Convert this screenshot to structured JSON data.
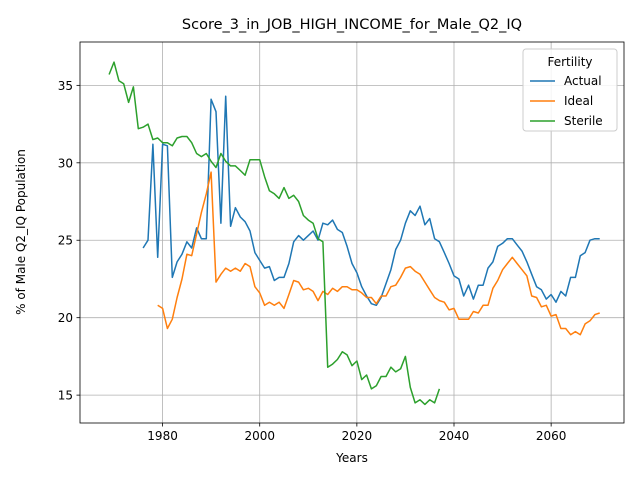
{
  "chart_data": {
    "type": "line",
    "title": "Score_3_in_JOB_HIGH_INCOME_for_Male_Q2_IQ",
    "xlabel": "Years",
    "ylabel": "% of Male Q2_IQ Population",
    "xlim": [
      1963,
      2075
    ],
    "ylim": [
      13.2,
      37.8
    ],
    "xticks": [
      1980,
      2000,
      2020,
      2040,
      2060
    ],
    "yticks": [
      15,
      20,
      25,
      30,
      35
    ],
    "grid": true,
    "legend": {
      "title": "Fertility",
      "position": "top-right"
    },
    "series": [
      {
        "name": "Actual",
        "color": "#1f77b4",
        "x": [
          1976,
          1977,
          1978,
          1979,
          1980,
          1981,
          1982,
          1983,
          1984,
          1985,
          1986,
          1987,
          1988,
          1989,
          1990,
          1991,
          1992,
          1993,
          1994,
          1995,
          1996,
          1997,
          1998,
          1999,
          2000,
          2001,
          2002,
          2003,
          2004,
          2005,
          2006,
          2007,
          2008,
          2009,
          2010,
          2011,
          2012,
          2013,
          2014,
          2015,
          2016,
          2017,
          2018,
          2019,
          2020,
          2021,
          2022,
          2023,
          2024,
          2025,
          2026,
          2027,
          2028,
          2029,
          2030,
          2031,
          2032,
          2033,
          2034,
          2035,
          2036,
          2037,
          2038,
          2039,
          2040,
          2041,
          2042,
          2043,
          2044,
          2045,
          2046,
          2047,
          2048,
          2049,
          2050,
          2051,
          2052,
          2053,
          2054,
          2055,
          2056,
          2057,
          2058,
          2059,
          2060,
          2061,
          2062,
          2063,
          2064,
          2065,
          2066,
          2067,
          2068,
          2069,
          2070
        ],
        "values": [
          24.5,
          25.0,
          31.2,
          23.9,
          31.2,
          31.1,
          22.6,
          23.6,
          24.1,
          24.9,
          24.5,
          25.8,
          25.1,
          25.1,
          34.1,
          33.3,
          26.1,
          34.3,
          25.9,
          27.1,
          26.5,
          26.2,
          25.6,
          24.2,
          23.7,
          23.2,
          23.3,
          22.4,
          22.6,
          22.6,
          23.5,
          24.9,
          25.3,
          25.0,
          25.3,
          25.6,
          25.0,
          26.1,
          26.0,
          26.3,
          25.7,
          25.5,
          24.6,
          23.5,
          22.9,
          22.0,
          21.4,
          20.9,
          20.8,
          21.3,
          22.2,
          23.1,
          24.4,
          25.0,
          26.1,
          26.9,
          26.6,
          27.2,
          26.0,
          26.4,
          25.1,
          24.9,
          24.2,
          23.5,
          22.7,
          22.5,
          21.4,
          22.1,
          21.2,
          22.1,
          22.1,
          23.2,
          23.6,
          24.6,
          24.8,
          25.1,
          25.1,
          24.7,
          24.3,
          23.6,
          22.8,
          22.0,
          21.8,
          21.2,
          21.5,
          21.0,
          21.7,
          21.4,
          22.6,
          22.6,
          24.0,
          24.2,
          25.0,
          25.1,
          25.1
        ]
      },
      {
        "name": "Ideal",
        "color": "#ff7f0e",
        "x": [
          1979,
          1980,
          1981,
          1982,
          1983,
          1984,
          1985,
          1986,
          1987,
          1988,
          1989,
          1990,
          1991,
          1992,
          1993,
          1994,
          1995,
          1996,
          1997,
          1998,
          1999,
          2000,
          2001,
          2002,
          2003,
          2004,
          2005,
          2006,
          2007,
          2008,
          2009,
          2010,
          2011,
          2012,
          2013,
          2014,
          2015,
          2016,
          2017,
          2018,
          2019,
          2020,
          2021,
          2022,
          2023,
          2024,
          2025,
          2026,
          2027,
          2028,
          2029,
          2030,
          2031,
          2032,
          2033,
          2034,
          2035,
          2036,
          2037,
          2038,
          2039,
          2040,
          2041,
          2042,
          2043,
          2044,
          2045,
          2046,
          2047,
          2048,
          2049,
          2050,
          2051,
          2052,
          2053,
          2054,
          2055,
          2056,
          2057,
          2058,
          2059,
          2060,
          2061,
          2062,
          2063,
          2064,
          2065,
          2066,
          2067,
          2068,
          2069,
          2070
        ],
        "values": [
          20.8,
          20.6,
          19.3,
          19.9,
          21.3,
          22.5,
          24.1,
          24.0,
          25.4,
          26.8,
          28.0,
          29.4,
          22.3,
          22.8,
          23.2,
          23.0,
          23.2,
          23.0,
          23.5,
          23.3,
          22.0,
          21.6,
          20.8,
          21.0,
          20.8,
          21.0,
          20.6,
          21.5,
          22.4,
          22.3,
          21.8,
          21.9,
          21.7,
          21.1,
          21.7,
          21.5,
          21.9,
          21.7,
          22.0,
          22.0,
          21.8,
          21.8,
          21.6,
          21.3,
          21.3,
          20.9,
          21.4,
          21.4,
          22.0,
          22.1,
          22.6,
          23.2,
          23.3,
          23.0,
          22.8,
          22.3,
          21.8,
          21.3,
          21.1,
          21.0,
          20.5,
          20.6,
          19.9,
          19.9,
          19.9,
          20.4,
          20.3,
          20.8,
          20.8,
          21.9,
          22.4,
          23.1,
          23.5,
          23.9,
          23.5,
          23.1,
          22.7,
          21.4,
          21.3,
          20.7,
          20.8,
          20.1,
          20.2,
          19.3,
          19.3,
          18.9,
          19.1,
          18.9,
          19.6,
          19.8,
          20.2,
          20.3
        ]
      },
      {
        "name": "Sterile",
        "color": "#2ca02c",
        "x": [
          1969,
          1970,
          1971,
          1972,
          1973,
          1974,
          1975,
          1976,
          1977,
          1978,
          1979,
          1980,
          1981,
          1982,
          1983,
          1984,
          1985,
          1986,
          1987,
          1988,
          1989,
          1990,
          1991,
          1992,
          1993,
          1994,
          1995,
          1996,
          1997,
          1998,
          1999,
          2000,
          2001,
          2002,
          2003,
          2004,
          2005,
          2006,
          2007,
          2008,
          2009,
          2010,
          2011,
          2012,
          2013,
          2014,
          2015,
          2016,
          2017,
          2018,
          2019,
          2020,
          2021,
          2022,
          2023,
          2024,
          2025,
          2026,
          2027,
          2028,
          2029,
          2030,
          2031,
          2032,
          2033,
          2034,
          2035,
          2036,
          2037
        ],
        "values": [
          35.7,
          36.5,
          35.3,
          35.1,
          33.9,
          34.9,
          32.2,
          32.3,
          32.5,
          31.5,
          31.6,
          31.3,
          31.3,
          31.1,
          31.6,
          31.7,
          31.7,
          31.3,
          30.6,
          30.4,
          30.6,
          30.1,
          29.7,
          30.6,
          30.1,
          29.8,
          29.8,
          29.5,
          29.2,
          30.2,
          30.2,
          30.2,
          29.1,
          28.2,
          28.0,
          27.7,
          28.4,
          27.7,
          27.9,
          27.5,
          26.6,
          26.3,
          26.1,
          25.1,
          24.9,
          16.8,
          17.0,
          17.3,
          17.8,
          17.6,
          16.9,
          17.2,
          16.0,
          16.3,
          15.4,
          15.6,
          16.2,
          16.2,
          16.8,
          16.5,
          16.7,
          17.5,
          15.5,
          14.5,
          14.7,
          14.4,
          14.7,
          14.5,
          15.4
        ]
      }
    ]
  }
}
